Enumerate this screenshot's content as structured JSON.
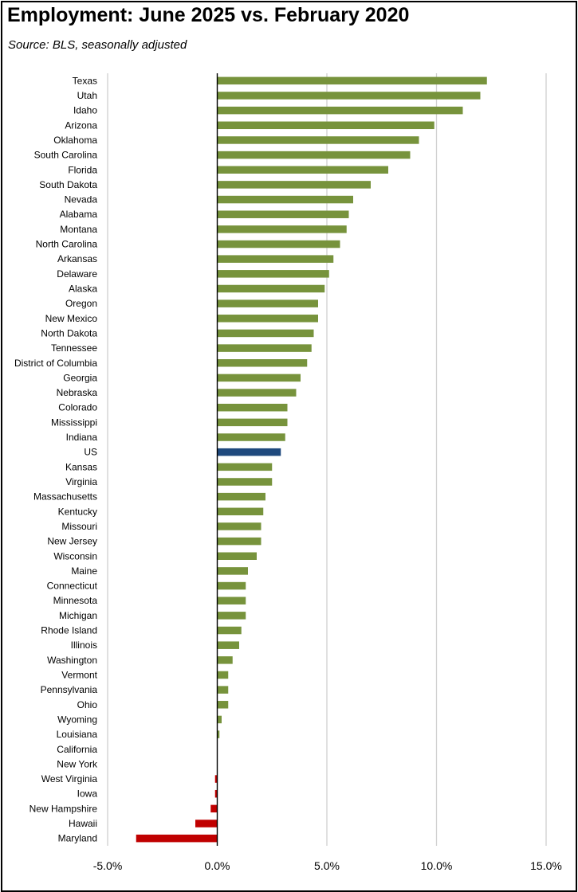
{
  "title": "Employment:  June 2025 vs. February 2020",
  "subtitle": "Source:  BLS, seasonally adjusted",
  "colors": {
    "positive": "#77933c",
    "us": "#1f497d",
    "negative": "#c00000",
    "grid": "#d0d0d0",
    "axis": "#000000"
  },
  "chart_data": {
    "type": "bar",
    "orientation": "horizontal",
    "title": "Employment:  June 2025 vs. February 2020",
    "subtitle": "Source:  BLS, seasonally adjusted",
    "xlim": [
      -5,
      15
    ],
    "xticks": [
      -5,
      0,
      5,
      10,
      15
    ],
    "xtick_labels": [
      "-5.0%",
      "0.0%",
      "5.0%",
      "10.0%",
      "15.0%"
    ],
    "grid": "vertical",
    "categories": [
      "Texas",
      "Utah",
      "Idaho",
      "Arizona",
      "Oklahoma",
      "South Carolina",
      "Florida",
      "South Dakota",
      "Nevada",
      "Alabama",
      "Montana",
      "North Carolina",
      "Arkansas",
      "Delaware",
      "Alaska",
      "Oregon",
      "New Mexico",
      "North Dakota",
      "Tennessee",
      "District of Columbia",
      "Georgia",
      "Nebraska",
      "Colorado",
      "Mississippi",
      "Indiana",
      "US",
      "Kansas",
      "Virginia",
      "Massachusetts",
      "Kentucky",
      "Missouri",
      "New Jersey",
      "Wisconsin",
      "Maine",
      "Connecticut",
      "Minnesota",
      "Michigan",
      "Rhode Island",
      "Illinois",
      "Washington",
      "Vermont",
      "Pennsylvania",
      "Ohio",
      "Wyoming",
      "Louisiana",
      "California",
      "New York",
      "West Virginia",
      "Iowa",
      "New Hampshire",
      "Hawaii",
      "Maryland"
    ],
    "values": [
      12.3,
      12.0,
      11.2,
      9.9,
      9.2,
      8.8,
      7.8,
      7.0,
      6.2,
      6.0,
      5.9,
      5.6,
      5.3,
      5.1,
      4.9,
      4.6,
      4.6,
      4.4,
      4.3,
      4.1,
      3.8,
      3.6,
      3.2,
      3.2,
      3.1,
      2.9,
      2.5,
      2.5,
      2.2,
      2.1,
      2.0,
      2.0,
      1.8,
      1.4,
      1.3,
      1.3,
      1.3,
      1.1,
      1.0,
      0.7,
      0.5,
      0.5,
      0.5,
      0.2,
      0.1,
      0.0,
      0.0,
      -0.1,
      -0.1,
      -0.3,
      -1.0,
      -3.7
    ],
    "highlight": "US"
  }
}
